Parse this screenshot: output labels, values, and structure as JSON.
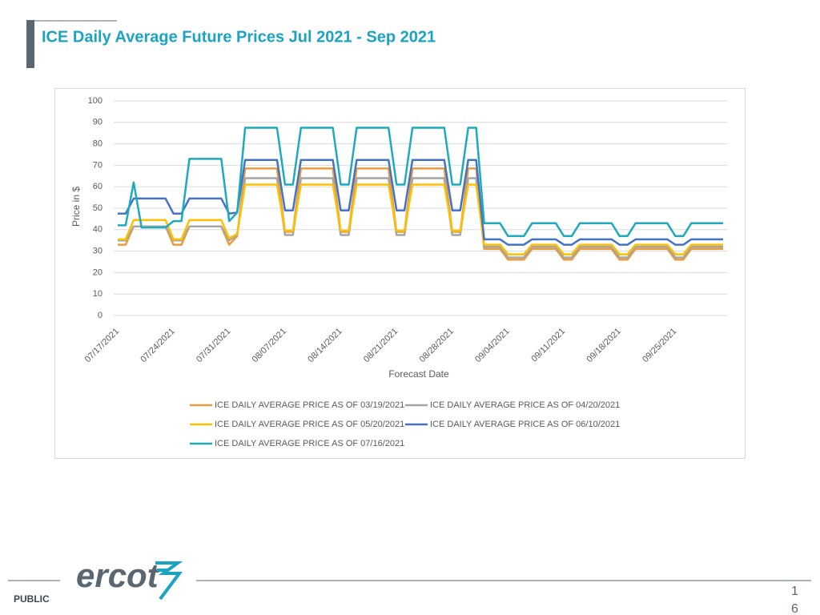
{
  "slide_title": "ICE Daily Average Future Prices Jul 2021 - Sep 2021",
  "footer": {
    "logo": "ercot",
    "classification": "PUBLIC",
    "page_number": "16"
  },
  "chart_data": {
    "type": "line",
    "y_axis_label": "Price in $",
    "x_axis_label": "Forecast Date",
    "ylim": [
      0,
      100
    ],
    "yticks": [
      0,
      10,
      20,
      30,
      40,
      50,
      60,
      70,
      80,
      90,
      100
    ],
    "grid": true,
    "legend": "bottom",
    "categories": [
      "07/17/2021",
      null,
      null,
      null,
      null,
      null,
      null,
      "07/24/2021",
      null,
      null,
      null,
      null,
      null,
      null,
      "07/31/2021",
      null,
      null,
      null,
      null,
      null,
      null,
      "08/07/2021",
      null,
      null,
      null,
      null,
      null,
      null,
      "08/14/2021",
      null,
      null,
      null,
      null,
      null,
      null,
      "08/21/2021",
      null,
      null,
      null,
      null,
      null,
      null,
      "08/28/2021",
      null,
      null,
      null,
      null,
      null,
      null,
      "09/04/2021",
      null,
      null,
      null,
      null,
      null,
      null,
      "09/11/2021",
      null,
      null,
      null,
      null,
      null,
      null,
      "09/18/2021",
      null,
      null,
      null,
      null,
      null,
      null,
      "09/25/2021",
      null,
      null,
      null,
      null,
      null,
      null
    ],
    "series": [
      {
        "name": "ICE DAILY AVERAGE PRICE AS OF 03/19/2021",
        "color": "#ed9b3c",
        "values": [
          33,
          33,
          41.5,
          41.5,
          41.5,
          41.5,
          41.5,
          33,
          33,
          41.5,
          41.5,
          41.5,
          41.5,
          41.5,
          33,
          37,
          68.5,
          68.5,
          68.5,
          68.5,
          68.5,
          39,
          39,
          68.5,
          68.5,
          68.5,
          68.5,
          68.5,
          39,
          39,
          68.5,
          68.5,
          68.5,
          68.5,
          68.5,
          39,
          39,
          68.5,
          68.5,
          68.5,
          68.5,
          68.5,
          39,
          39,
          68.5,
          68.5,
          31,
          31,
          31,
          26,
          26,
          26,
          31,
          31,
          31,
          31,
          26,
          26,
          31,
          31,
          31,
          31,
          31,
          26,
          26,
          31,
          31,
          31,
          31,
          31,
          26,
          26,
          31,
          31,
          31,
          31,
          31
        ]
      },
      {
        "name": "ICE DAILY AVERAGE PRICE AS OF 04/20/2021",
        "color": "#a5a5a5",
        "values": [
          35,
          35,
          41.5,
          41.5,
          41.5,
          41.5,
          41.5,
          35,
          35,
          41.5,
          41.5,
          41.5,
          41.5,
          41.5,
          35,
          37.5,
          64,
          64,
          64,
          64,
          64,
          37.5,
          37.5,
          64,
          64,
          64,
          64,
          64,
          37.5,
          37.5,
          64,
          64,
          64,
          64,
          64,
          37.5,
          37.5,
          64,
          64,
          64,
          64,
          64,
          37.5,
          37.5,
          64,
          64,
          32,
          32,
          32,
          27,
          27,
          27,
          32,
          32,
          32,
          32,
          27,
          27,
          32,
          32,
          32,
          32,
          32,
          27,
          27,
          32,
          32,
          32,
          32,
          32,
          27,
          27,
          32,
          32,
          32,
          32,
          32
        ]
      },
      {
        "name": "ICE DAILY AVERAGE PRICE AS OF 05/20/2021",
        "color": "#ffc000",
        "values": [
          35.5,
          35.5,
          44.5,
          44.5,
          44.5,
          44.5,
          44.5,
          35.5,
          35.5,
          44.5,
          44.5,
          44.5,
          44.5,
          44.5,
          36,
          38,
          61,
          61,
          61,
          61,
          61,
          39.5,
          39.5,
          61,
          61,
          61,
          61,
          61,
          39.5,
          39.5,
          61,
          61,
          61,
          61,
          61,
          39.5,
          39.5,
          61,
          61,
          61,
          61,
          61,
          39.5,
          39.5,
          61,
          61,
          33,
          33,
          33,
          28.5,
          28.5,
          28.5,
          33,
          33,
          33,
          33,
          28.5,
          28.5,
          33,
          33,
          33,
          33,
          33,
          28.5,
          28.5,
          33,
          33,
          33,
          33,
          33,
          28.5,
          28.5,
          33,
          33,
          33,
          33,
          33
        ]
      },
      {
        "name": "ICE DAILY AVERAGE PRICE AS OF 06/10/2021",
        "color": "#4472c4",
        "values": [
          47.5,
          47.5,
          54.5,
          54.5,
          54.5,
          54.5,
          54.5,
          47.5,
          47.5,
          54.5,
          54.5,
          54.5,
          54.5,
          54.5,
          47.5,
          48,
          72.5,
          72.5,
          72.5,
          72.5,
          72.5,
          49,
          49,
          72.5,
          72.5,
          72.5,
          72.5,
          72.5,
          49,
          49,
          72.5,
          72.5,
          72.5,
          72.5,
          72.5,
          49,
          49,
          72.5,
          72.5,
          72.5,
          72.5,
          72.5,
          49,
          49,
          72.5,
          72.5,
          35.5,
          35.5,
          35.5,
          33,
          33,
          33,
          35.5,
          35.5,
          35.5,
          35.5,
          33,
          33,
          35.5,
          35.5,
          35.5,
          35.5,
          35.5,
          33,
          33,
          35.5,
          35.5,
          35.5,
          35.5,
          35.5,
          33,
          33,
          35.5,
          35.5,
          35.5,
          35.5,
          35.5
        ]
      },
      {
        "name": "ICE DAILY AVERAGE PRICE AS OF 07/16/2021",
        "color": "#1eaabd",
        "values": [
          42,
          42,
          62,
          41,
          41,
          41,
          41,
          44,
          44,
          73,
          73,
          73,
          73,
          73,
          44,
          48,
          87.5,
          87.5,
          87.5,
          87.5,
          87.5,
          61,
          61,
          87.5,
          87.5,
          87.5,
          87.5,
          87.5,
          61,
          61,
          87.5,
          87.5,
          87.5,
          87.5,
          87.5,
          61,
          61,
          87.5,
          87.5,
          87.5,
          87.5,
          87.5,
          61,
          61,
          87.5,
          87.5,
          43,
          43,
          43,
          37,
          37,
          37,
          43,
          43,
          43,
          43,
          37,
          37,
          43,
          43,
          43,
          43,
          43,
          37,
          37,
          43,
          43,
          43,
          43,
          43,
          37,
          37,
          43,
          43,
          43,
          43,
          43
        ]
      }
    ]
  }
}
